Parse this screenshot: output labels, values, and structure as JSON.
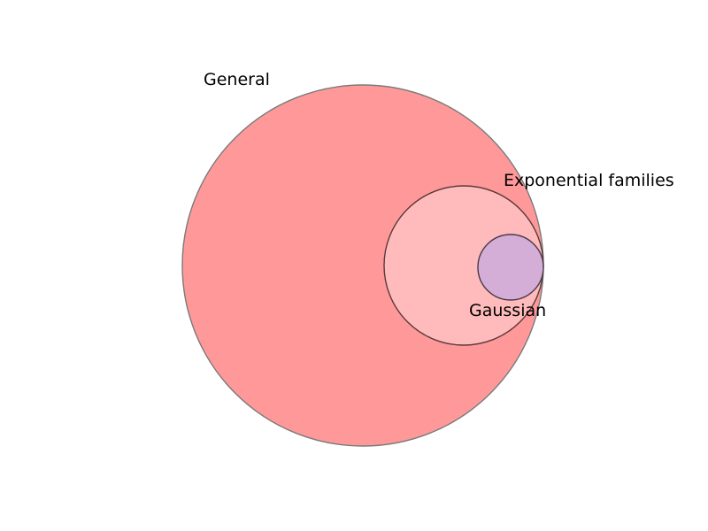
{
  "diagram": {
    "type": "nested-euler",
    "sets": [
      {
        "id": "general",
        "label": "General",
        "fill": "#ff9999",
        "stroke": "#7a7a7a"
      },
      {
        "id": "exponential",
        "label": "Exponential families",
        "fill": "#ffbbbb",
        "stroke": "#5a3a3a"
      },
      {
        "id": "gaussian",
        "label": "Gaussian",
        "fill": "#d5aed8",
        "stroke": "#4a3a4a"
      }
    ],
    "containment": [
      [
        "exponential",
        "general"
      ],
      [
        "gaussian",
        "exponential"
      ]
    ]
  }
}
